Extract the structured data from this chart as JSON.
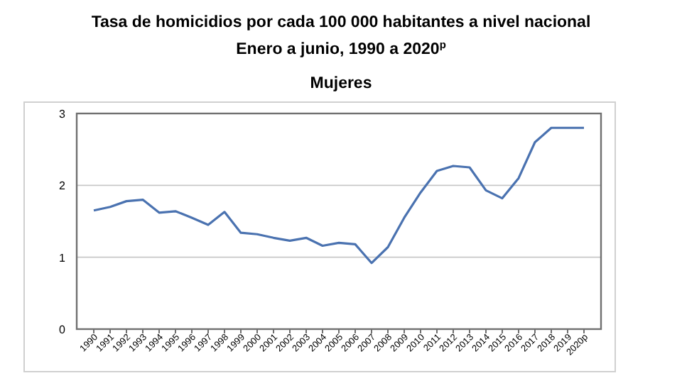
{
  "chart_data": {
    "type": "line",
    "title": "Tasa de homicidios por cada 100 000 habitantes a nivel nacional",
    "subtitle": "Enero a junio, 1990 a 2020$^{p}$",
    "annotations": [
      "Mujeres"
    ],
    "categories": [
      "1990",
      "1991",
      "1992",
      "1993",
      "1994",
      "1995",
      "1996",
      "1997",
      "1998",
      "1999",
      "2000",
      "2001",
      "2002",
      "2003",
      "2004",
      "2005",
      "2006",
      "2007",
      "2008",
      "2009",
      "2010",
      "2011",
      "2012",
      "2013",
      "2014",
      "2015",
      "2016",
      "2017",
      "2018",
      "2019",
      "2020p"
    ],
    "series": [
      {
        "color": "#4a72b0",
        "values": [
          1.65,
          1.7,
          1.78,
          1.8,
          1.62,
          1.64,
          1.55,
          1.45,
          1.63,
          1.34,
          1.32,
          1.27,
          1.23,
          1.27,
          1.16,
          1.2,
          1.18,
          0.92,
          1.14,
          1.55,
          1.9,
          2.2,
          2.27,
          2.25,
          1.93,
          1.82,
          2.1,
          2.6,
          2.8,
          2.8,
          2.8
        ]
      }
    ],
    "ylim": [
      0,
      3
    ],
    "yticks": [
      0,
      1,
      2,
      3
    ],
    "grid": "y",
    "marker": "none",
    "line_style": "solid"
  }
}
